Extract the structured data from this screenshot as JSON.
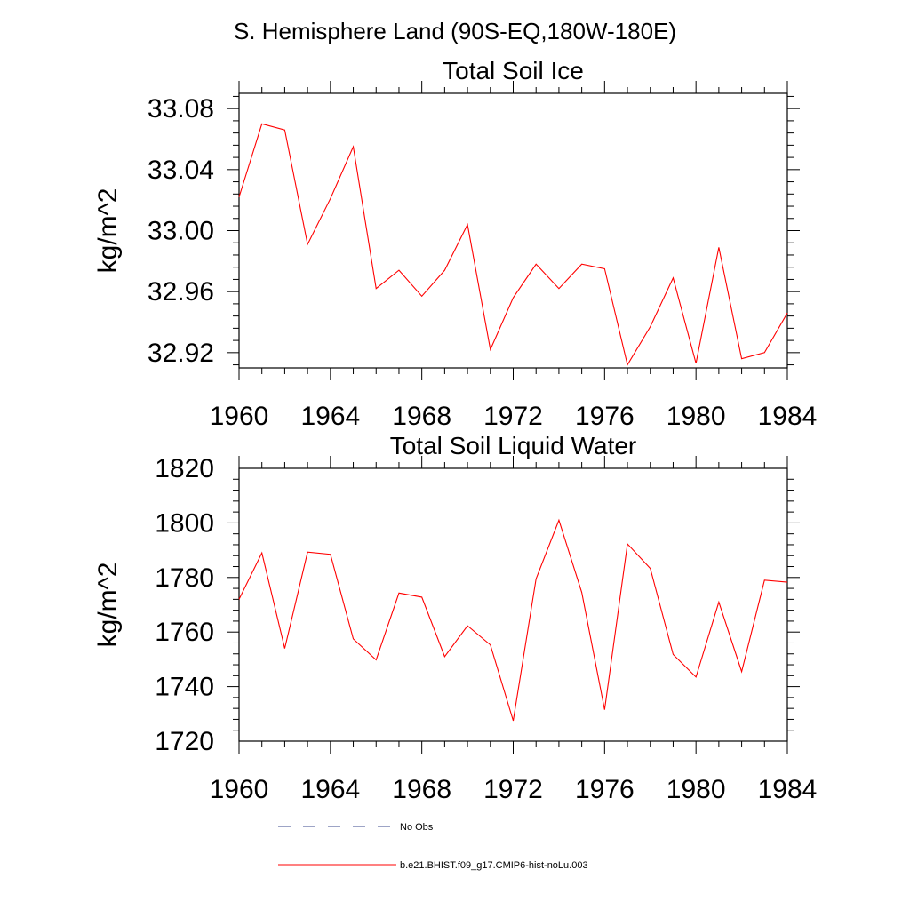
{
  "page": {
    "title": "S. Hemisphere Land (90S-EQ,180W-180E)"
  },
  "legend": {
    "entries": [
      {
        "label": "No Obs",
        "style": "dashed",
        "color": "#3b4a8c"
      },
      {
        "label": "b.e21.BHIST.f09_g17.CMIP6-hist-noLu.003",
        "style": "solid",
        "color": "#ff0000"
      }
    ]
  },
  "chart_data": [
    {
      "type": "line",
      "title": "Total Soil Ice",
      "xlabel": "",
      "ylabel": "kg/m^2",
      "xlim": [
        1960,
        1984
      ],
      "ylim": [
        32.91,
        33.09
      ],
      "x_ticks": [
        1960,
        1964,
        1968,
        1972,
        1976,
        1980,
        1984
      ],
      "y_ticks": [
        "32.92",
        "32.96",
        "33.00",
        "33.04",
        "33.08"
      ],
      "grid": false,
      "series": [
        {
          "name": "b.e21.BHIST.f09_g17.CMIP6-hist-noLu.003",
          "color": "#ff0000",
          "x": [
            1960,
            1961,
            1962,
            1963,
            1964,
            1965,
            1966,
            1967,
            1968,
            1969,
            1970,
            1971,
            1972,
            1973,
            1974,
            1975,
            1976,
            1977,
            1978,
            1979,
            1980,
            1981,
            1982,
            1983,
            1984
          ],
          "values": [
            33.022,
            33.07,
            33.066,
            32.991,
            33.021,
            33.055,
            32.962,
            32.974,
            32.957,
            32.974,
            33.004,
            32.922,
            32.956,
            32.978,
            32.962,
            32.978,
            32.975,
            32.912,
            32.937,
            32.969,
            32.913,
            32.989,
            32.916,
            32.92,
            32.946
          ]
        }
      ]
    },
    {
      "type": "line",
      "title": "Total Soil Liquid Water",
      "xlabel": "",
      "ylabel": "kg/m^2",
      "xlim": [
        1960,
        1984
      ],
      "ylim": [
        1720,
        1820
      ],
      "x_ticks": [
        1960,
        1964,
        1968,
        1972,
        1976,
        1980,
        1984
      ],
      "y_ticks": [
        "1720",
        "1740",
        "1760",
        "1780",
        "1800",
        "1820"
      ],
      "grid": false,
      "series": [
        {
          "name": "b.e21.BHIST.f09_g17.CMIP6-hist-noLu.003",
          "color": "#ff0000",
          "x": [
            1960,
            1961,
            1962,
            1963,
            1964,
            1965,
            1966,
            1967,
            1968,
            1969,
            1970,
            1971,
            1972,
            1973,
            1974,
            1975,
            1976,
            1977,
            1978,
            1979,
            1980,
            1981,
            1982,
            1983,
            1984
          ],
          "values": [
            1772,
            1789,
            1754,
            1789.3,
            1788.5,
            1757.5,
            1749.8,
            1774.3,
            1772.8,
            1751,
            1762.3,
            1755.3,
            1727.5,
            1779.5,
            1801,
            1774.5,
            1731.5,
            1792.3,
            1783.3,
            1751.8,
            1743.5,
            1771,
            1745.5,
            1779,
            1778.3
          ]
        }
      ]
    }
  ]
}
